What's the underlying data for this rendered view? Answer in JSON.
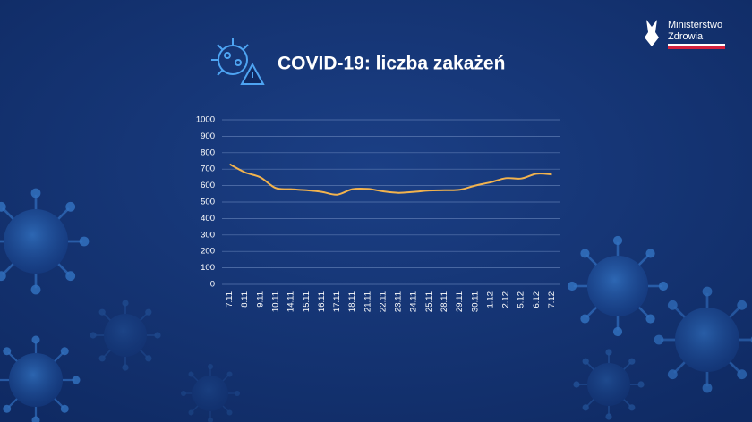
{
  "brand": {
    "lines": [
      "Ministerstwo",
      "Zdrowia"
    ]
  },
  "chart_data": {
    "type": "line",
    "title": "COVID-19: liczba zakażeń",
    "categories": [
      "7.11",
      "8.11",
      "9.11",
      "10.11",
      "14.11",
      "15.11",
      "16.11",
      "17.11",
      "18.11",
      "21.11",
      "22.11",
      "23.11",
      "24.11",
      "25.11",
      "28.11",
      "29.11",
      "30.11",
      "1.12",
      "2.12",
      "5.12",
      "6.12",
      "7.12"
    ],
    "series": [
      {
        "color": "#f2b34e",
        "values": [
          730,
          680,
          650,
          585,
          578,
          572,
          562,
          545,
          578,
          580,
          565,
          556,
          562,
          570,
          572,
          575,
          600,
          620,
          645,
          643,
          672,
          668
        ]
      }
    ],
    "ylim": [
      0,
      1000
    ],
    "yticks": [
      0,
      100,
      200,
      300,
      400,
      500,
      600,
      700,
      800,
      900,
      1000
    ],
    "grid": true
  }
}
